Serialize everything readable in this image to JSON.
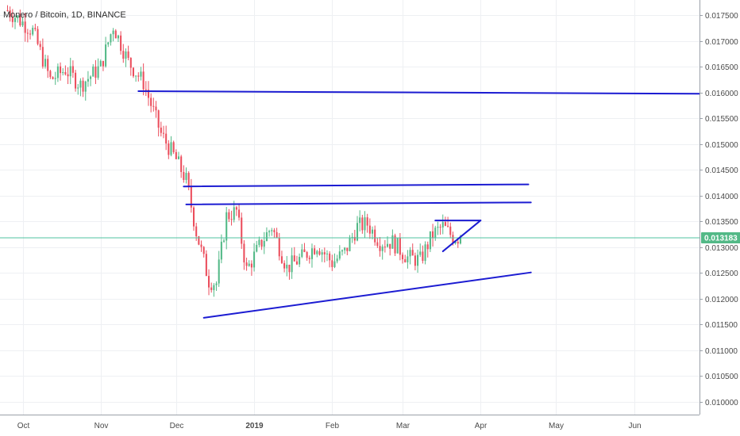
{
  "header": {
    "symbol_title": "Monero / Bitcoin, 1D, BINANCE"
  },
  "colors": {
    "up": "#53b987",
    "down": "#eb4d5c",
    "trendline": "#1c1cd2",
    "last_price_line": "#4fc3a1",
    "grid": "#eef0f3",
    "axis_text": "#4a4a4a"
  },
  "current_price": {
    "label": "0.013183",
    "value": 0.013183
  },
  "chart_data": {
    "type": "candlestick",
    "title": "Monero / Bitcoin, 1D, BINANCE",
    "y_axis": {
      "ticks": [
        0.0175,
        0.017,
        0.0165,
        0.016,
        0.0155,
        0.015,
        0.0145,
        0.014,
        0.0135,
        0.013,
        0.0125,
        0.012,
        0.0115,
        0.011,
        0.0105,
        0.01
      ],
      "tick_labels": [
        "0.017500",
        "0.017000",
        "0.016500",
        "0.016000",
        "0.015500",
        "0.015000",
        "0.014500",
        "0.014000",
        "0.013500",
        "0.013000",
        "0.012500",
        "0.012000",
        "0.011500",
        "0.011000",
        "0.010500",
        "0.010000"
      ],
      "range": [
        0.00975,
        0.0178
      ]
    },
    "x_axis": {
      "labels": [
        "Oct",
        "Nov",
        "Dec",
        "2019",
        "Feb",
        "Mar",
        "Apr",
        "May",
        "Jun"
      ],
      "label_dates": [
        "2018-10-01",
        "2018-11-01",
        "2018-12-01",
        "2019-01-01",
        "2019-02-01",
        "2019-03-01",
        "2019-04-01",
        "2019-05-01",
        "2019-06-01"
      ],
      "range": [
        "2018-09-22",
        "2019-06-27"
      ]
    },
    "grid": true,
    "key_points": [
      {
        "date": "2018-09-25",
        "price": 0.0176
      },
      {
        "date": "2018-10-05",
        "price": 0.0172
      },
      {
        "date": "2018-10-12",
        "price": 0.01625
      },
      {
        "date": "2018-10-18",
        "price": 0.01645
      },
      {
        "date": "2018-10-24",
        "price": 0.01615
      },
      {
        "date": "2018-11-01",
        "price": 0.0165
      },
      {
        "date": "2018-11-06",
        "price": 0.0173
      },
      {
        "date": "2018-11-12",
        "price": 0.0166
      },
      {
        "date": "2018-11-18",
        "price": 0.0162
      },
      {
        "date": "2018-11-25",
        "price": 0.0152
      },
      {
        "date": "2018-12-01",
        "price": 0.0147
      },
      {
        "date": "2018-12-05",
        "price": 0.0143
      },
      {
        "date": "2018-12-09",
        "price": 0.0133
      },
      {
        "date": "2018-12-14",
        "price": 0.01235
      },
      {
        "date": "2018-12-17",
        "price": 0.0123
      },
      {
        "date": "2018-12-21",
        "price": 0.0136
      },
      {
        "date": "2018-12-25",
        "price": 0.0137
      },
      {
        "date": "2018-12-29",
        "price": 0.01255
      },
      {
        "date": "2019-01-04",
        "price": 0.0131
      },
      {
        "date": "2019-01-08",
        "price": 0.0134
      },
      {
        "date": "2019-01-14",
        "price": 0.0126
      },
      {
        "date": "2019-01-20",
        "price": 0.0128
      },
      {
        "date": "2019-01-26",
        "price": 0.01305
      },
      {
        "date": "2019-02-01",
        "price": 0.0127
      },
      {
        "date": "2019-02-06",
        "price": 0.0129
      },
      {
        "date": "2019-02-11",
        "price": 0.0134
      },
      {
        "date": "2019-02-15",
        "price": 0.01345
      },
      {
        "date": "2019-02-20",
        "price": 0.0131
      },
      {
        "date": "2019-02-25",
        "price": 0.0131
      },
      {
        "date": "2019-03-03",
        "price": 0.0128
      },
      {
        "date": "2019-03-08",
        "price": 0.01275
      },
      {
        "date": "2019-03-13",
        "price": 0.01325
      },
      {
        "date": "2019-03-17",
        "price": 0.0134
      },
      {
        "date": "2019-03-21",
        "price": 0.0132
      },
      {
        "date": "2019-03-24",
        "price": 0.013183
      }
    ],
    "trendlines": [
      {
        "name": "resistance-0.01600",
        "from": {
          "date": "2018-11-16",
          "price": 0.01603
        },
        "to": {
          "date": "2019-06-27",
          "price": 0.01598
        }
      },
      {
        "name": "resistance-0.01420",
        "from": {
          "date": "2018-12-04",
          "price": 0.01418
        },
        "to": {
          "date": "2019-04-20",
          "price": 0.01422
        }
      },
      {
        "name": "resistance-0.01385",
        "from": {
          "date": "2018-12-05",
          "price": 0.01383
        },
        "to": {
          "date": "2019-04-21",
          "price": 0.01387
        }
      },
      {
        "name": "rising-support",
        "from": {
          "date": "2018-12-12",
          "price": 0.01163
        },
        "to": {
          "date": "2019-04-21",
          "price": 0.01251
        }
      },
      {
        "name": "triangle-top",
        "from": {
          "date": "2019-03-14",
          "price": 0.01352
        },
        "to": {
          "date": "2019-04-01",
          "price": 0.01352
        }
      },
      {
        "name": "triangle-bottom",
        "from": {
          "date": "2019-03-17",
          "price": 0.01292
        },
        "to": {
          "date": "2019-04-01",
          "price": 0.01352
        }
      }
    ]
  }
}
